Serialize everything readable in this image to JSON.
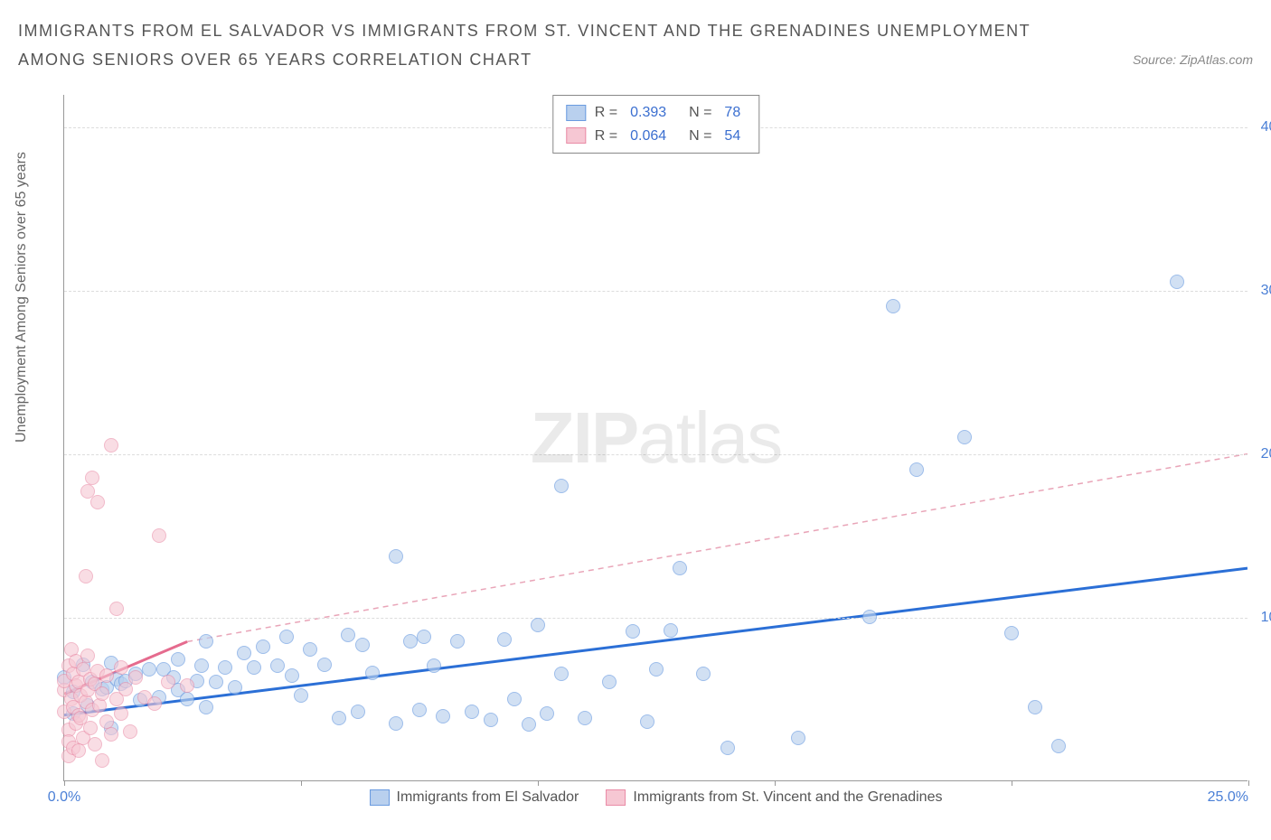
{
  "title": "IMMIGRANTS FROM EL SALVADOR VS IMMIGRANTS FROM ST. VINCENT AND THE GRENADINES UNEMPLOYMENT AMONG SENIORS OVER 65 YEARS CORRELATION CHART",
  "source_label": "Source: ZipAtlas.com",
  "y_axis_label": "Unemployment Among Seniors over 65 years",
  "watermark_bold": "ZIP",
  "watermark_light": "atlas",
  "chart": {
    "type": "scatter",
    "x_range": [
      0,
      25
    ],
    "y_range": [
      0,
      42
    ],
    "y_ticks": [
      {
        "v": 10,
        "label": "10.0%"
      },
      {
        "v": 20,
        "label": "20.0%"
      },
      {
        "v": 30,
        "label": "30.0%"
      },
      {
        "v": 40,
        "label": "40.0%"
      }
    ],
    "x_ticks_major": [
      0,
      5,
      10,
      15,
      20,
      25
    ],
    "x_tick_labels": [
      {
        "v": 0,
        "label": "0.0%"
      },
      {
        "v": 25,
        "label": "25.0%",
        "align": "right"
      }
    ],
    "grid_color": "#dddddd",
    "axis_color": "#999999",
    "background_color": "#ffffff",
    "tick_label_color": "#4a7fd6",
    "point_radius": 8,
    "series": [
      {
        "id": "elsalvador",
        "name": "Immigrants from El Salvador",
        "fill": "#b9d0ee",
        "stroke": "#6a9be0",
        "fill_opacity": 0.65,
        "trend": {
          "x1": 0,
          "y1": 4.0,
          "x2": 25,
          "y2": 13.0,
          "stroke": "#2b6fd6",
          "width": 3,
          "dash": "none"
        },
        "trend_dashed_ext": null,
        "R": "0.393",
        "N": "78",
        "points": [
          [
            0.0,
            6.3
          ],
          [
            0.2,
            5.4
          ],
          [
            0.2,
            4.1
          ],
          [
            0.4,
            7.1
          ],
          [
            0.5,
            4.6
          ],
          [
            0.6,
            6.0
          ],
          [
            0.8,
            5.6
          ],
          [
            0.9,
            5.7
          ],
          [
            1.0,
            3.2
          ],
          [
            1.0,
            7.2
          ],
          [
            1.1,
            6.2
          ],
          [
            1.2,
            5.9
          ],
          [
            1.3,
            6.1
          ],
          [
            1.5,
            6.5
          ],
          [
            1.6,
            4.9
          ],
          [
            1.8,
            6.8
          ],
          [
            2.0,
            5.1
          ],
          [
            2.1,
            6.8
          ],
          [
            2.3,
            6.3
          ],
          [
            2.4,
            7.4
          ],
          [
            2.4,
            5.5
          ],
          [
            2.6,
            5.0
          ],
          [
            2.8,
            6.1
          ],
          [
            2.9,
            7.0
          ],
          [
            3.0,
            4.5
          ],
          [
            3.0,
            8.5
          ],
          [
            3.2,
            6.0
          ],
          [
            3.4,
            6.9
          ],
          [
            3.6,
            5.7
          ],
          [
            3.8,
            7.8
          ],
          [
            4.0,
            6.9
          ],
          [
            4.2,
            8.2
          ],
          [
            4.5,
            7.0
          ],
          [
            4.7,
            8.8
          ],
          [
            4.8,
            6.4
          ],
          [
            5.0,
            5.2
          ],
          [
            5.2,
            8.0
          ],
          [
            5.5,
            7.1
          ],
          [
            5.8,
            3.8
          ],
          [
            6.0,
            8.9
          ],
          [
            6.2,
            4.2
          ],
          [
            6.3,
            8.3
          ],
          [
            6.5,
            6.6
          ],
          [
            7.0,
            13.7
          ],
          [
            7.0,
            3.5
          ],
          [
            7.3,
            8.5
          ],
          [
            7.5,
            4.3
          ],
          [
            7.6,
            8.8
          ],
          [
            7.8,
            7.0
          ],
          [
            8.0,
            3.9
          ],
          [
            8.3,
            8.5
          ],
          [
            8.6,
            4.2
          ],
          [
            9.0,
            3.7
          ],
          [
            9.3,
            8.6
          ],
          [
            9.5,
            5.0
          ],
          [
            9.8,
            3.4
          ],
          [
            10.0,
            9.5
          ],
          [
            10.2,
            4.1
          ],
          [
            10.5,
            18.0
          ],
          [
            10.5,
            6.5
          ],
          [
            11.0,
            3.8
          ],
          [
            11.5,
            6.0
          ],
          [
            12.0,
            9.1
          ],
          [
            12.3,
            3.6
          ],
          [
            12.5,
            6.8
          ],
          [
            12.8,
            9.2
          ],
          [
            13.0,
            13.0
          ],
          [
            13.5,
            6.5
          ],
          [
            14.0,
            2.0
          ],
          [
            15.5,
            2.6
          ],
          [
            17.0,
            10.0
          ],
          [
            17.5,
            29.0
          ],
          [
            18.0,
            19.0
          ],
          [
            19.0,
            21.0
          ],
          [
            20.0,
            9.0
          ],
          [
            20.5,
            4.5
          ],
          [
            21.0,
            2.1
          ],
          [
            23.5,
            30.5
          ]
        ]
      },
      {
        "id": "stvincent",
        "name": "Immigrants from St. Vincent and the Grenadines",
        "fill": "#f6c7d3",
        "stroke": "#e98ba6",
        "fill_opacity": 0.6,
        "trend": {
          "x1": 0,
          "y1": 5.3,
          "x2": 2.6,
          "y2": 8.5,
          "stroke": "#e56b8e",
          "width": 3,
          "dash": "none"
        },
        "trend_dashed_ext": {
          "x1": 2.6,
          "y1": 8.5,
          "x2": 25,
          "y2": 20.0,
          "stroke": "#e9a5b8",
          "width": 1.5,
          "dash": "6,5"
        },
        "R": "0.064",
        "N": "54",
        "points": [
          [
            0.0,
            5.5
          ],
          [
            0.0,
            4.2
          ],
          [
            0.0,
            6.1
          ],
          [
            0.1,
            7.0
          ],
          [
            0.1,
            3.1
          ],
          [
            0.1,
            2.4
          ],
          [
            0.1,
            1.5
          ],
          [
            0.15,
            5.0
          ],
          [
            0.15,
            8.0
          ],
          [
            0.2,
            4.5
          ],
          [
            0.2,
            6.5
          ],
          [
            0.2,
            2.0
          ],
          [
            0.25,
            3.5
          ],
          [
            0.25,
            5.8
          ],
          [
            0.25,
            7.3
          ],
          [
            0.3,
            4.0
          ],
          [
            0.3,
            6.0
          ],
          [
            0.3,
            1.8
          ],
          [
            0.35,
            5.2
          ],
          [
            0.35,
            3.8
          ],
          [
            0.4,
            6.8
          ],
          [
            0.4,
            2.6
          ],
          [
            0.45,
            12.5
          ],
          [
            0.45,
            4.8
          ],
          [
            0.5,
            5.5
          ],
          [
            0.5,
            7.6
          ],
          [
            0.5,
            17.7
          ],
          [
            0.55,
            3.2
          ],
          [
            0.55,
            6.2
          ],
          [
            0.6,
            18.5
          ],
          [
            0.6,
            4.3
          ],
          [
            0.65,
            5.9
          ],
          [
            0.65,
            2.2
          ],
          [
            0.7,
            6.7
          ],
          [
            0.7,
            17.0
          ],
          [
            0.75,
            4.6
          ],
          [
            0.8,
            1.2
          ],
          [
            0.8,
            5.3
          ],
          [
            0.9,
            6.4
          ],
          [
            0.9,
            3.6
          ],
          [
            1.0,
            20.5
          ],
          [
            1.0,
            2.8
          ],
          [
            1.1,
            10.5
          ],
          [
            1.1,
            5.0
          ],
          [
            1.2,
            6.9
          ],
          [
            1.2,
            4.1
          ],
          [
            1.3,
            5.6
          ],
          [
            1.4,
            3.0
          ],
          [
            1.5,
            6.3
          ],
          [
            1.7,
            5.1
          ],
          [
            1.9,
            4.7
          ],
          [
            2.0,
            15.0
          ],
          [
            2.2,
            6.0
          ],
          [
            2.6,
            5.8
          ]
        ]
      }
    ]
  },
  "legend_top_labels": {
    "R": "R =",
    "N": "N ="
  },
  "legend_bottom": [
    {
      "series": "elsalvador"
    },
    {
      "series": "stvincent"
    }
  ]
}
